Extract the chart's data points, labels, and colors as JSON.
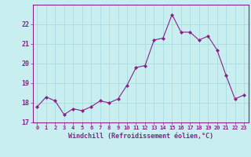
{
  "x": [
    0,
    1,
    2,
    3,
    4,
    5,
    6,
    7,
    8,
    9,
    10,
    11,
    12,
    13,
    14,
    15,
    16,
    17,
    18,
    19,
    20,
    21,
    22,
    23
  ],
  "y": [
    17.8,
    18.3,
    18.1,
    17.4,
    17.7,
    17.6,
    17.8,
    18.1,
    18.0,
    18.2,
    18.9,
    19.8,
    19.9,
    21.2,
    21.3,
    22.5,
    21.6,
    21.6,
    21.2,
    21.4,
    20.7,
    19.4,
    18.2,
    18.4
  ],
  "line_color": "#882288",
  "marker_color": "#882288",
  "bg_color": "#c8eef0",
  "grid_color": "#a0d8dc",
  "xlabel": "Windchill (Refroidissement éolien,°C)",
  "xlabel_color": "#882288",
  "tick_color": "#882288",
  "ylim": [
    17,
    23
  ],
  "xlim": [
    -0.5,
    23.5
  ],
  "yticks": [
    17,
    18,
    19,
    20,
    21,
    22
  ],
  "xticks": [
    0,
    1,
    2,
    3,
    4,
    5,
    6,
    7,
    8,
    9,
    10,
    11,
    12,
    13,
    14,
    15,
    16,
    17,
    18,
    19,
    20,
    21,
    22,
    23
  ],
  "xtick_labels": [
    "0",
    "1",
    "2",
    "3",
    "4",
    "5",
    "6",
    "7",
    "8",
    "9",
    "10",
    "11",
    "12",
    "13",
    "14",
    "15",
    "16",
    "17",
    "18",
    "19",
    "20",
    "21",
    "22",
    "23"
  ]
}
